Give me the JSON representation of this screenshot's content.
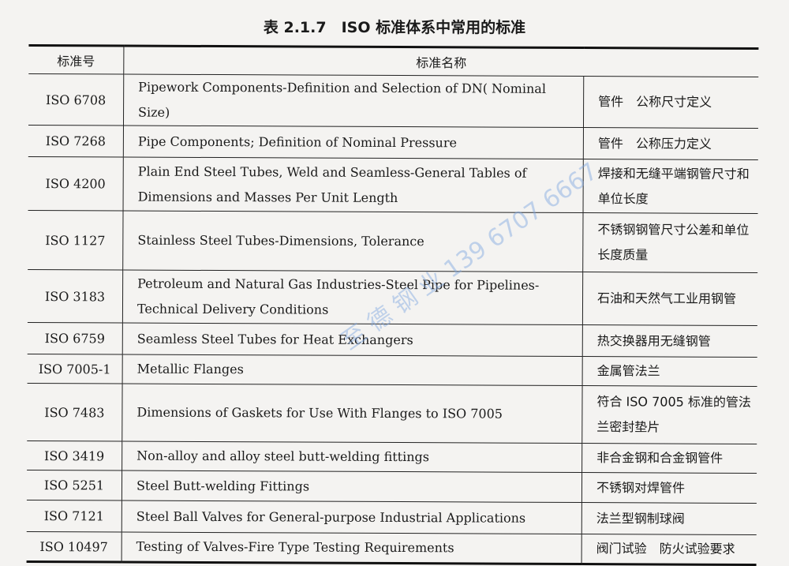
{
  "title": "表 2.1.7　ISO 标准体系中常用的标准",
  "headers": [
    "标准号",
    "标准名称",
    ""
  ],
  "rows": [
    [
      "ISO 6708",
      "Pipework Components-Definition and Selection of DN( Nominal Size)",
      "管件　公称尺寸定义"
    ],
    [
      "ISO 7268",
      "Pipe Components; Definition of Nominal Pressure",
      "管件　公称压力定义"
    ],
    [
      "ISO 4200",
      "Plain End Steel Tubes, Weld and Seamless-General Tables of Dimensions and Masses Per Unit Length",
      "焊接和无缝平端钢管尺寸和单位长度"
    ],
    [
      "ISO 1127",
      "Stainless Steel Tubes-Dimensions, Tolerance",
      "不锈钢钢管尺寸公差和单位长度质量"
    ],
    [
      "ISO 3183",
      "Petroleum and Natural Gas Industries-Steel Pipe for Pipelines-Technical Delivery Conditions",
      "石油和天然气工业用钢管"
    ],
    [
      "ISO 6759",
      "Seamless Steel Tubes for Heat Exchangers",
      "热交换器用无缝钢管"
    ],
    [
      "ISO 7005-1",
      "Metallic Flanges",
      "金属管法兰"
    ],
    [
      "ISO 7483",
      "Dimensions of Gaskets for Use With Flanges to ISO 7005",
      "符合 ISO 7005 标准的管法兰密封垫片"
    ],
    [
      "ISO 3419",
      "Non-alloy and alloy steel butt-welding fittings",
      "非合金钢和合金钢管件"
    ],
    [
      "ISO 5251",
      "Steel Butt-welding Fittings",
      "不锈钢对焊管件"
    ],
    [
      "ISO 7121",
      "Steel Ball Valves for General-purpose Industrial Applications",
      "法兰型钢制球阀"
    ],
    [
      "ISO 10497",
      "Testing of Valves-Fire Type Testing Requirements",
      "阀门试验　防火试验要求"
    ]
  ],
  "watermark": "至 德 钢 业 139 6707 6667"
}
